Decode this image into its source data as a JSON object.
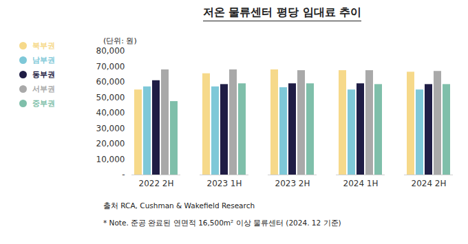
{
  "chart_data": {
    "type": "bar",
    "title": "저온 물류센터 평당 임대료 추이",
    "ylabel": "(단위: 원)",
    "source": "출처 RCA, Cushman & Wakefield Research",
    "note": "* Note. 준공 완료된 연면적 16,500m² 이상 물류센터 (2024. 12 기준)",
    "categories": [
      "2022 2H",
      "2023 1H",
      "2023 2H",
      "2024 1H",
      "2024 2H"
    ],
    "series": [
      {
        "name": "북부권",
        "color": "#f6d98a",
        "values": [
          55000,
          65500,
          68000,
          67500,
          66500
        ]
      },
      {
        "name": "남부권",
        "color": "#7ec8d8",
        "values": [
          57000,
          57000,
          56500,
          55000,
          55000
        ]
      },
      {
        "name": "동부권",
        "color": "#1f1d45",
        "values": [
          61000,
          58500,
          59000,
          59000,
          58500
        ]
      },
      {
        "name": "서부권",
        "color": "#a9a9a9",
        "values": [
          68000,
          68000,
          67500,
          67500,
          67000
        ]
      },
      {
        "name": "중부권",
        "color": "#7fbfaa",
        "values": [
          47500,
          59000,
          59000,
          58500,
          58500
        ]
      }
    ],
    "ylim": [
      0,
      80000
    ],
    "yticks": [
      {
        "value": 0,
        "label": "-"
      },
      {
        "value": 10000,
        "label": "10,000"
      },
      {
        "value": 20000,
        "label": "20,000"
      },
      {
        "value": 30000,
        "label": "30,000"
      },
      {
        "value": 40000,
        "label": "40,000"
      },
      {
        "value": 50000,
        "label": "50,000"
      },
      {
        "value": 60000,
        "label": "60,000"
      },
      {
        "value": 70000,
        "label": "70,000"
      },
      {
        "value": 80000,
        "label": "80,000"
      }
    ],
    "grid": false,
    "legend": "left"
  }
}
